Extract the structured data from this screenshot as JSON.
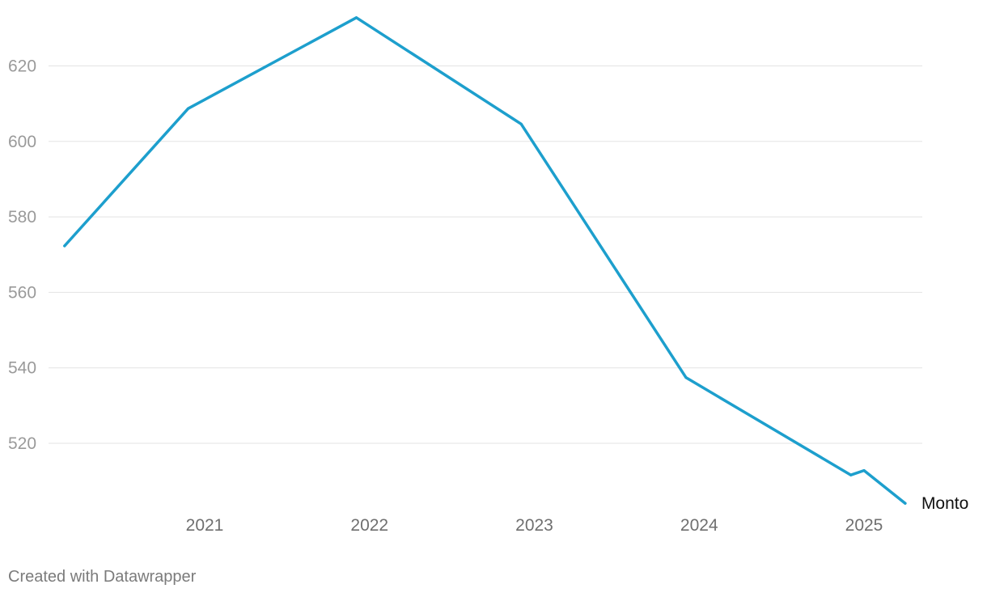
{
  "chart_data": {
    "type": "line",
    "title": "",
    "xlabel": "",
    "ylabel": "",
    "ylim": [
      500,
      630
    ],
    "y_ticks": [
      520,
      540,
      560,
      580,
      600,
      620
    ],
    "x_ticks": [
      2021,
      2022,
      2023,
      2024,
      2025
    ],
    "x_tick_labels": [
      "2021",
      "2022",
      "2023",
      "2024",
      "2025"
    ],
    "grid": true,
    "series": [
      {
        "name": "Monto",
        "color": "#1d9fcd",
        "points": [
          {
            "x": 2020.15,
            "y": 572.3
          },
          {
            "x": 2020.9,
            "y": 608.7
          },
          {
            "x": 2021.92,
            "y": 632.8
          },
          {
            "x": 2022.92,
            "y": 604.6
          },
          {
            "x": 2023.92,
            "y": 537.4
          },
          {
            "x": 2024.92,
            "y": 511.6
          },
          {
            "x": 2025.0,
            "y": 512.8
          },
          {
            "x": 2025.25,
            "y": 504.1
          }
        ]
      }
    ]
  },
  "footer": {
    "credit": "Created with Datawrapper"
  }
}
